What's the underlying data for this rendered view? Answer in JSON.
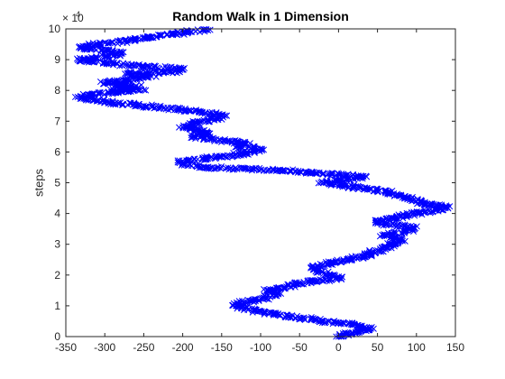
{
  "chart_data": {
    "type": "scatter",
    "title": "Random Walk in 1 Dimension",
    "xlabel": "",
    "ylabel": "steps",
    "xlim": [
      -350,
      150
    ],
    "ylim": [
      0,
      100000
    ],
    "xticks": [
      -350,
      -300,
      -250,
      -200,
      -150,
      -100,
      -50,
      0,
      50,
      100,
      150
    ],
    "yticks": [
      0,
      10000,
      20000,
      30000,
      40000,
      50000,
      60000,
      70000,
      80000,
      90000,
      100000
    ],
    "ytick_labels": [
      "0",
      "1",
      "2",
      "3",
      "4",
      "5",
      "6",
      "7",
      "8",
      "9",
      "10"
    ],
    "y_exponent_base": "× 10",
    "y_exponent_power": "4",
    "marker": "x",
    "grid": false,
    "colors": {
      "series": "#0000ff",
      "axes": "#262626",
      "background": "#ffffff"
    },
    "series": [
      {
        "values": [
          [
            0,
            0
          ],
          [
            10,
            1000
          ],
          [
            25,
            1500
          ],
          [
            40,
            2500
          ],
          [
            30,
            3500
          ],
          [
            20,
            4000
          ],
          [
            0,
            4500
          ],
          [
            -20,
            5000
          ],
          [
            -45,
            6000
          ],
          [
            -75,
            7000
          ],
          [
            -90,
            7800
          ],
          [
            -110,
            8500
          ],
          [
            -130,
            10000
          ],
          [
            -120,
            11200
          ],
          [
            -95,
            12500
          ],
          [
            -80,
            13800
          ],
          [
            -90,
            15000
          ],
          [
            -70,
            16000
          ],
          [
            -55,
            17000
          ],
          [
            -40,
            18000
          ],
          [
            -10,
            18500
          ],
          [
            0,
            19000
          ],
          [
            -15,
            20000
          ],
          [
            -25,
            21500
          ],
          [
            -30,
            22500
          ],
          [
            -15,
            23500
          ],
          [
            5,
            24500
          ],
          [
            20,
            25500
          ],
          [
            40,
            26500
          ],
          [
            50,
            28000
          ],
          [
            70,
            30000
          ],
          [
            80,
            31500
          ],
          [
            60,
            33000
          ],
          [
            85,
            34000
          ],
          [
            95,
            35500
          ],
          [
            60,
            36500
          ],
          [
            50,
            37500
          ],
          [
            70,
            38500
          ],
          [
            90,
            39500
          ],
          [
            110,
            40500
          ],
          [
            130,
            41500
          ],
          [
            140,
            42000
          ],
          [
            110,
            43000
          ],
          [
            100,
            44000
          ],
          [
            90,
            45000
          ],
          [
            75,
            46000
          ],
          [
            60,
            47000
          ],
          [
            40,
            48000
          ],
          [
            20,
            48500
          ],
          [
            0,
            49500
          ],
          [
            -20,
            50000
          ],
          [
            10,
            51000
          ],
          [
            30,
            52000
          ],
          [
            -20,
            53000
          ],
          [
            -70,
            54000
          ],
          [
            -120,
            54500
          ],
          [
            -170,
            55000
          ],
          [
            -200,
            56000
          ],
          [
            -200,
            57000
          ],
          [
            -170,
            58000
          ],
          [
            -150,
            58500
          ],
          [
            -120,
            59500
          ],
          [
            -100,
            61000
          ],
          [
            -130,
            62000
          ],
          [
            -120,
            62500
          ],
          [
            -140,
            63500
          ],
          [
            -160,
            64000
          ],
          [
            -185,
            65000
          ],
          [
            -165,
            66000
          ],
          [
            -180,
            67000
          ],
          [
            -200,
            68000
          ],
          [
            -190,
            69000
          ],
          [
            -175,
            70000
          ],
          [
            -155,
            71000
          ],
          [
            -150,
            72000
          ],
          [
            -175,
            73000
          ],
          [
            -215,
            74000
          ],
          [
            -250,
            75000
          ],
          [
            -290,
            76000
          ],
          [
            -330,
            77500
          ],
          [
            -320,
            78500
          ],
          [
            -290,
            79500
          ],
          [
            -255,
            80000
          ],
          [
            -290,
            80500
          ],
          [
            -260,
            81500
          ],
          [
            -300,
            82500
          ],
          [
            -270,
            83500
          ],
          [
            -240,
            84500
          ],
          [
            -270,
            85500
          ],
          [
            -215,
            86000
          ],
          [
            -200,
            87000
          ],
          [
            -260,
            88000
          ],
          [
            -300,
            89000
          ],
          [
            -320,
            89500
          ],
          [
            -330,
            90000
          ],
          [
            -300,
            91000
          ],
          [
            -280,
            92000
          ],
          [
            -300,
            93000
          ],
          [
            -330,
            94000
          ],
          [
            -310,
            95000
          ],
          [
            -275,
            96000
          ],
          [
            -250,
            97000
          ],
          [
            -220,
            98000
          ],
          [
            -190,
            99000
          ],
          [
            -170,
            99800
          ]
        ]
      }
    ]
  }
}
